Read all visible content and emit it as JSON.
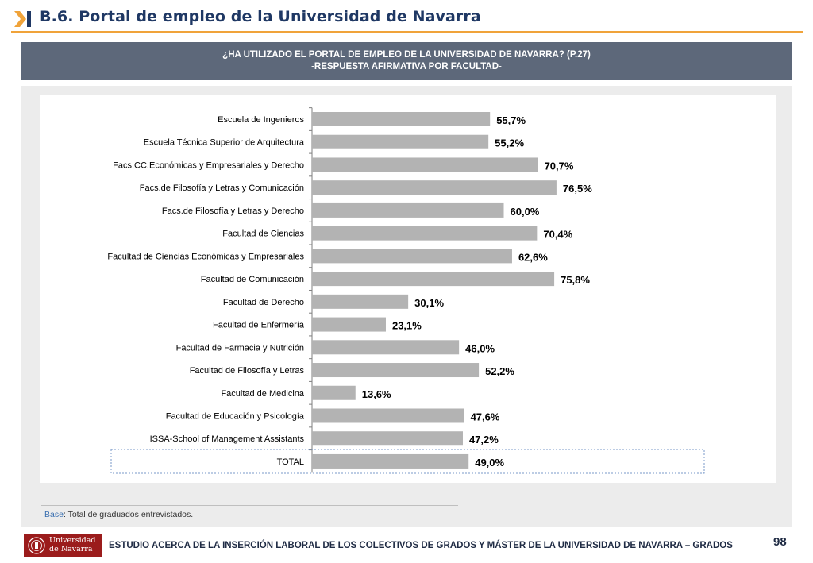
{
  "header": {
    "title": "B.6. Portal de empleo de la Universidad de Navarra"
  },
  "banner": {
    "line1": "¿HA UTILIZADO EL PORTAL DE EMPLEO DE LA UNIVERSIDAD DE NAVARRA? (P.27)",
    "line2": "-RESPUESTA AFIRMATIVA POR FACULTAD-"
  },
  "chart_data": {
    "type": "bar",
    "orientation": "horizontal",
    "categories": [
      "Escuela de Ingenieros",
      "Escuela Técnica Superior de Arquitectura",
      "Facs.CC.Económicas y Empresariales y Derecho",
      "Facs.de Filosofía y Letras y Comunicación",
      "Facs.de Filosofía y Letras y Derecho",
      "Facultad de Ciencias",
      "Facultad de Ciencias Económicas y Empresariales",
      "Facultad de Comunicación",
      "Facultad de Derecho",
      "Facultad de Enfermería",
      "Facultad de Farmacia y Nutrición",
      "Facultad de Filosofía y Letras",
      "Facultad de Medicina",
      "Facultad de Educación y Psicología",
      "ISSA-School of Management Assistants",
      "TOTAL"
    ],
    "values": [
      55.7,
      55.2,
      70.7,
      76.5,
      60.0,
      70.4,
      62.6,
      75.8,
      30.1,
      23.1,
      46.0,
      52.2,
      13.6,
      47.6,
      47.2,
      49.0
    ],
    "labels": [
      "55,7%",
      "55,2%",
      "70,7%",
      "76,5%",
      "60,0%",
      "70,4%",
      "62,6%",
      "75,8%",
      "30,1%",
      "23,1%",
      "46,0%",
      "52,2%",
      "13,6%",
      "47,6%",
      "47,2%",
      "49,0%"
    ],
    "xlim": [
      0,
      100
    ],
    "bar_color": "#b3b3b3",
    "highlighted_category": "TOTAL",
    "grid": false,
    "legend": false
  },
  "notes": {
    "base_label": "Base",
    "base_text": ": Total de graduados entrevistados."
  },
  "footer": {
    "logo_line1": "Universidad",
    "logo_line2": "de Navarra",
    "study_title": "ESTUDIO ACERCA DE LA INSERCIÓN LABORAL DE LOS COLECTIVOS DE GRADOS Y MÁSTER DE LA UNIVERSIDAD DE NAVARRA – GRADOS",
    "page_number": "98"
  },
  "colors": {
    "title": "#1f3864",
    "accent_rule": "#f0a33a",
    "banner_bg": "#5d687a",
    "bar": "#b3b3b3",
    "logo_bg": "#9b1c1c"
  }
}
